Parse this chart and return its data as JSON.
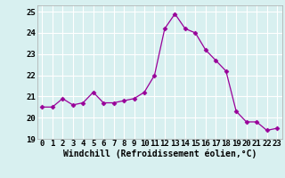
{
  "x": [
    0,
    1,
    2,
    3,
    4,
    5,
    6,
    7,
    8,
    9,
    10,
    11,
    12,
    13,
    14,
    15,
    16,
    17,
    18,
    19,
    20,
    21,
    22,
    23
  ],
  "y": [
    20.5,
    20.5,
    20.9,
    20.6,
    20.7,
    21.2,
    20.7,
    20.7,
    20.8,
    20.9,
    21.2,
    22.0,
    24.2,
    24.9,
    24.2,
    24.0,
    23.2,
    22.7,
    22.2,
    20.3,
    19.8,
    19.8,
    19.4,
    19.5
  ],
  "line_color": "#990099",
  "marker": "D",
  "marker_size": 2.5,
  "xlim": [
    -0.5,
    23.5
  ],
  "ylim": [
    19.0,
    25.3
  ],
  "yticks": [
    19,
    20,
    21,
    22,
    23,
    24,
    25
  ],
  "xticks": [
    0,
    1,
    2,
    3,
    4,
    5,
    6,
    7,
    8,
    9,
    10,
    11,
    12,
    13,
    14,
    15,
    16,
    17,
    18,
    19,
    20,
    21,
    22,
    23
  ],
  "xlabel": "Windchill (Refroidissement éolien,°C)",
  "background_color": "#d8f0f0",
  "grid_color": "#ffffff",
  "tick_label_fontsize": 6.5,
  "xlabel_fontsize": 7.0
}
